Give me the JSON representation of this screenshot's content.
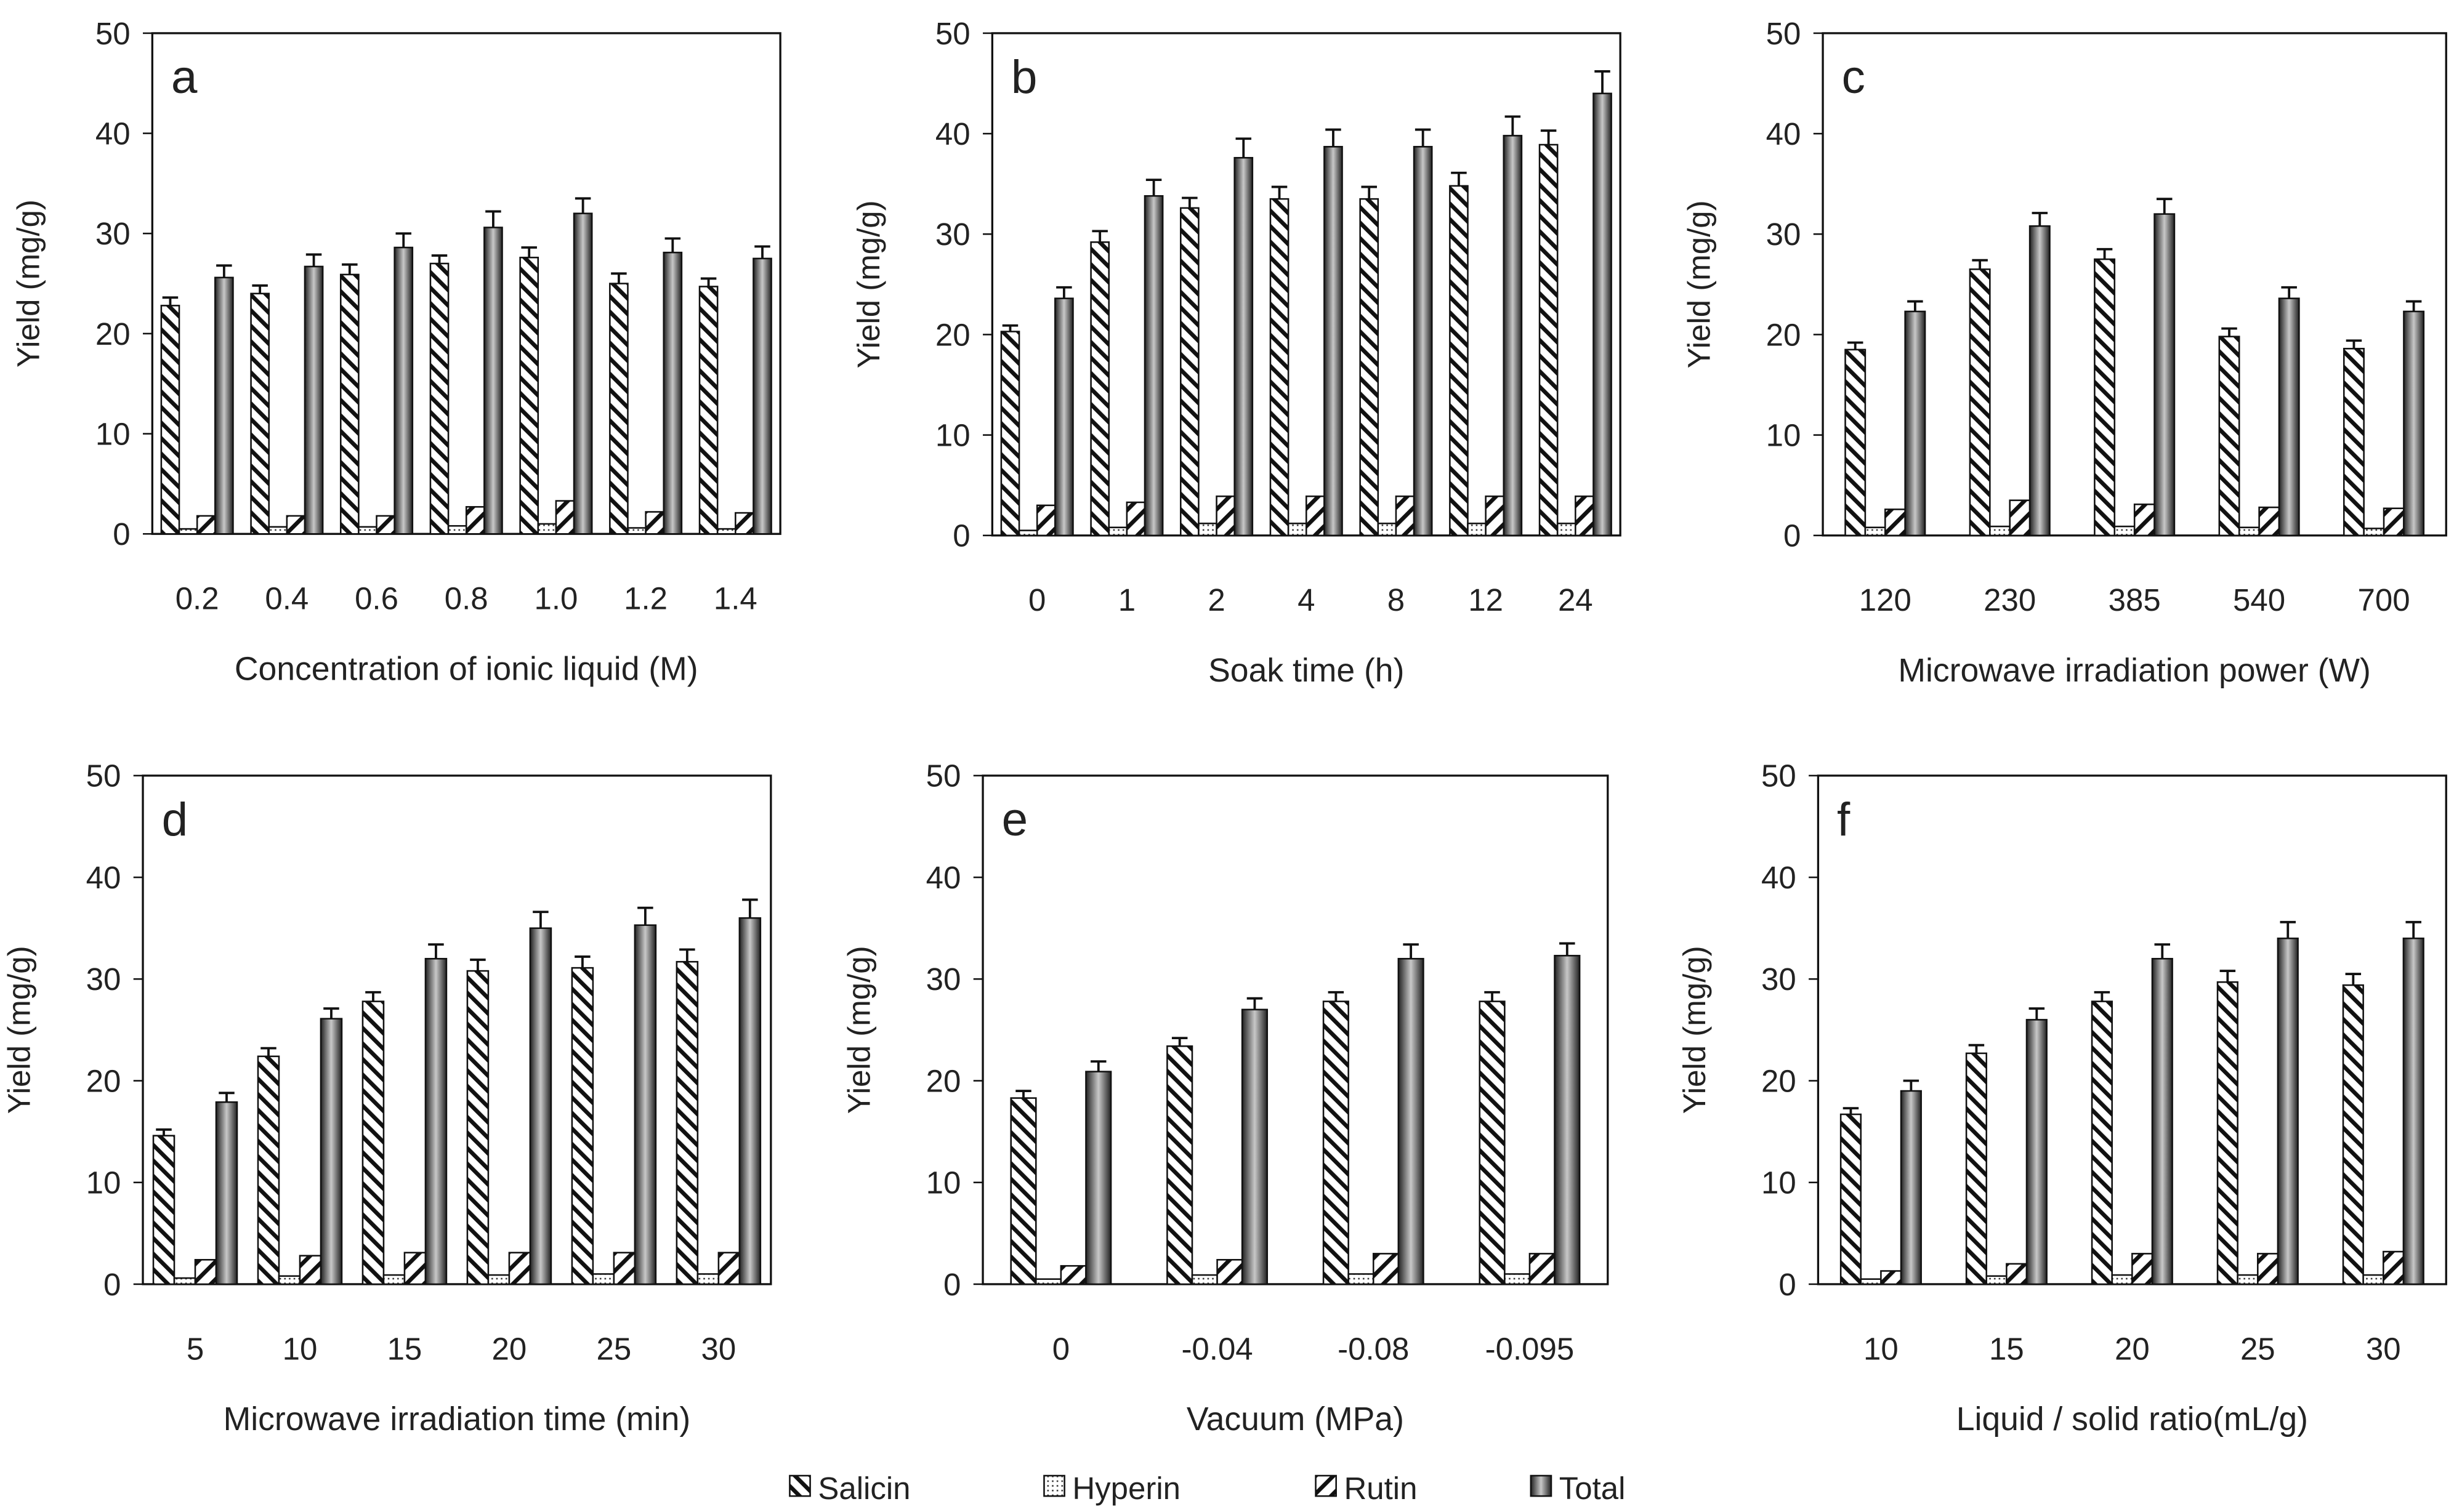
{
  "chart_data": [
    {
      "type": "bar",
      "panel": "a",
      "xlabel": "Concentration of ionic liquid (M)",
      "ylabel": "Yield (mg/g)",
      "ylim": [
        0,
        50
      ],
      "yticks": [
        0,
        10,
        20,
        30,
        40,
        50
      ],
      "categories": [
        "0.2",
        "0.4",
        "0.6",
        "0.8",
        "1.0",
        "1.2",
        "1.4"
      ],
      "series": [
        {
          "name": "Salicin",
          "values": [
            22.8,
            24.0,
            25.9,
            27.0,
            27.6,
            25.0,
            24.7
          ],
          "errors": [
            0.8,
            0.8,
            1.0,
            0.8,
            1.0,
            1.0,
            0.8
          ]
        },
        {
          "name": "Hyperin",
          "values": [
            0.5,
            0.7,
            0.7,
            0.8,
            1.0,
            0.6,
            0.5
          ],
          "errors": [
            0,
            0,
            0,
            0,
            0,
            0,
            0
          ]
        },
        {
          "name": "Rutin",
          "values": [
            1.8,
            1.8,
            1.8,
            2.7,
            3.3,
            2.2,
            2.1
          ],
          "errors": [
            0,
            0,
            0,
            0,
            0,
            0,
            0
          ]
        },
        {
          "name": "Total",
          "values": [
            25.6,
            26.7,
            28.6,
            30.6,
            32.0,
            28.1,
            27.5
          ],
          "errors": [
            1.2,
            1.2,
            1.4,
            1.6,
            1.5,
            1.4,
            1.2
          ]
        }
      ]
    },
    {
      "type": "bar",
      "panel": "b",
      "xlabel": "Soak time (h)",
      "ylabel": "Yield (mg/g)",
      "ylim": [
        0,
        50
      ],
      "yticks": [
        0,
        10,
        20,
        30,
        40,
        50
      ],
      "categories": [
        "0",
        "1",
        "2",
        "4",
        "8",
        "12",
        "24"
      ],
      "series": [
        {
          "name": "Salicin",
          "values": [
            20.3,
            29.2,
            32.6,
            33.5,
            33.5,
            34.8,
            38.9
          ],
          "errors": [
            0.6,
            1.1,
            1.0,
            1.2,
            1.2,
            1.3,
            1.4
          ]
        },
        {
          "name": "Hyperin",
          "values": [
            0.5,
            0.8,
            1.2,
            1.2,
            1.2,
            1.2,
            1.2
          ],
          "errors": [
            0,
            0,
            0,
            0,
            0,
            0,
            0
          ]
        },
        {
          "name": "Rutin",
          "values": [
            3.0,
            3.3,
            3.9,
            3.9,
            3.9,
            3.9,
            3.9
          ],
          "errors": [
            0,
            0,
            0,
            0,
            0,
            0,
            0
          ]
        },
        {
          "name": "Total",
          "values": [
            23.6,
            33.8,
            37.6,
            38.7,
            38.7,
            39.8,
            44.0
          ],
          "errors": [
            1.1,
            1.6,
            1.9,
            1.7,
            1.7,
            1.9,
            2.2
          ]
        }
      ]
    },
    {
      "type": "bar",
      "panel": "c",
      "xlabel": "Microwave irradiation power (W)",
      "ylabel": "Yield (mg/g)",
      "ylim": [
        0,
        50
      ],
      "yticks": [
        0,
        10,
        20,
        30,
        40,
        50
      ],
      "categories": [
        "120",
        "230",
        "385",
        "540",
        "700"
      ],
      "series": [
        {
          "name": "Salicin",
          "values": [
            18.5,
            26.5,
            27.5,
            19.8,
            18.6
          ],
          "errors": [
            0.7,
            0.9,
            1.0,
            0.8,
            0.8
          ]
        },
        {
          "name": "Hyperin",
          "values": [
            0.8,
            0.9,
            0.9,
            0.8,
            0.7
          ],
          "errors": [
            0,
            0,
            0,
            0,
            0
          ]
        },
        {
          "name": "Rutin",
          "values": [
            2.6,
            3.5,
            3.1,
            2.8,
            2.7
          ],
          "errors": [
            0,
            0,
            0,
            0,
            0
          ]
        },
        {
          "name": "Total",
          "values": [
            22.3,
            30.8,
            32.0,
            23.6,
            22.3
          ],
          "errors": [
            1.0,
            1.3,
            1.5,
            1.1,
            1.0
          ]
        }
      ]
    },
    {
      "type": "bar",
      "panel": "d",
      "xlabel": "Microwave irradiation time (min)",
      "ylabel": "Yield (mg/g)",
      "ylim": [
        0,
        50
      ],
      "yticks": [
        0,
        10,
        20,
        30,
        40,
        50
      ],
      "categories": [
        "5",
        "10",
        "15",
        "20",
        "25",
        "30"
      ],
      "series": [
        {
          "name": "Salicin",
          "values": [
            14.6,
            22.4,
            27.8,
            30.8,
            31.1,
            31.7
          ],
          "errors": [
            0.6,
            0.8,
            0.9,
            1.1,
            1.1,
            1.2
          ]
        },
        {
          "name": "Hyperin",
          "values": [
            0.6,
            0.8,
            0.9,
            0.9,
            1.0,
            1.0
          ],
          "errors": [
            0,
            0,
            0,
            0,
            0,
            0
          ]
        },
        {
          "name": "Rutin",
          "values": [
            2.4,
            2.8,
            3.1,
            3.1,
            3.1,
            3.1
          ],
          "errors": [
            0,
            0,
            0,
            0,
            0,
            0
          ]
        },
        {
          "name": "Total",
          "values": [
            17.9,
            26.1,
            32.0,
            35.0,
            35.3,
            36.0
          ],
          "errors": [
            0.9,
            1.0,
            1.4,
            1.6,
            1.7,
            1.8
          ]
        }
      ]
    },
    {
      "type": "bar",
      "panel": "e",
      "xlabel": "Vacuum (MPa)",
      "ylabel": "Yield (mg/g)",
      "ylim": [
        0,
        50
      ],
      "yticks": [
        0,
        10,
        20,
        30,
        40,
        50
      ],
      "categories": [
        "0",
        "-0.04",
        "-0.08",
        "-0.095"
      ],
      "series": [
        {
          "name": "Salicin",
          "values": [
            18.3,
            23.4,
            27.8,
            27.8
          ],
          "errors": [
            0.7,
            0.8,
            0.9,
            0.9
          ]
        },
        {
          "name": "Hyperin",
          "values": [
            0.5,
            0.9,
            1.0,
            1.0
          ],
          "errors": [
            0,
            0,
            0,
            0
          ]
        },
        {
          "name": "Rutin",
          "values": [
            1.8,
            2.4,
            3.0,
            3.0
          ],
          "errors": [
            0,
            0,
            0,
            0
          ]
        },
        {
          "name": "Total",
          "values": [
            20.9,
            27.0,
            32.0,
            32.3
          ],
          "errors": [
            1.0,
            1.1,
            1.4,
            1.2
          ]
        }
      ]
    },
    {
      "type": "bar",
      "panel": "f",
      "xlabel": "Liquid / solid ratio(mL/g)",
      "ylabel": "Yield (mg/g)",
      "ylim": [
        0,
        50
      ],
      "yticks": [
        0,
        10,
        20,
        30,
        40,
        50
      ],
      "categories": [
        "10",
        "15",
        "20",
        "25",
        "30"
      ],
      "series": [
        {
          "name": "Salicin",
          "values": [
            16.7,
            22.7,
            27.8,
            29.7,
            29.4
          ],
          "errors": [
            0.6,
            0.8,
            0.9,
            1.1,
            1.1
          ]
        },
        {
          "name": "Hyperin",
          "values": [
            0.5,
            0.8,
            0.9,
            0.9,
            0.9
          ],
          "errors": [
            0,
            0,
            0,
            0,
            0
          ]
        },
        {
          "name": "Rutin",
          "values": [
            1.3,
            2.0,
            3.0,
            3.0,
            3.2
          ],
          "errors": [
            0,
            0,
            0,
            0,
            0
          ]
        },
        {
          "name": "Total",
          "values": [
            19.0,
            26.0,
            32.0,
            34.0,
            34.0
          ],
          "errors": [
            1.0,
            1.1,
            1.4,
            1.6,
            1.6
          ]
        }
      ]
    }
  ],
  "legend": {
    "placement": "bottom",
    "items": [
      "Salicin",
      "Hyperin",
      "Rutin",
      "Total"
    ]
  }
}
